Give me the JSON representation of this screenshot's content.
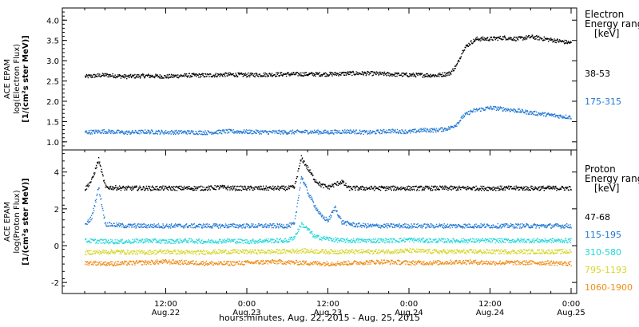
{
  "chart_data": [
    {
      "type": "scatter",
      "title": "",
      "ylabel": [
        "ACE EPAM",
        "log(Electron Flux)",
        "[1/(cm²s ster MeV)]"
      ],
      "legend_header": [
        "Electron",
        "Energy range",
        "[keV]"
      ],
      "x_range_hours": [
        0,
        72
      ],
      "ylim": [
        0.8,
        4.3
      ],
      "yticks": [
        "1.0",
        "1.5",
        "2.0",
        "2.5",
        "3.0",
        "3.5",
        "4.0"
      ],
      "ytick_values": [
        1.0,
        1.5,
        2.0,
        2.5,
        3.0,
        3.5,
        4.0
      ],
      "series": [
        {
          "name": "38-53",
          "color": "#000000",
          "points": [
            [
              0,
              2.62
            ],
            [
              3,
              2.66
            ],
            [
              6,
              2.62
            ],
            [
              9,
              2.64
            ],
            [
              12,
              2.62
            ],
            [
              15,
              2.65
            ],
            [
              18,
              2.65
            ],
            [
              21,
              2.67
            ],
            [
              24,
              2.66
            ],
            [
              27,
              2.67
            ],
            [
              30,
              2.68
            ],
            [
              33,
              2.68
            ],
            [
              36,
              2.68
            ],
            [
              39,
              2.7
            ],
            [
              42,
              2.7
            ],
            [
              45,
              2.68
            ],
            [
              48,
              2.66
            ],
            [
              50,
              2.66
            ],
            [
              52,
              2.65
            ],
            [
              54,
              2.7
            ],
            [
              55,
              2.9
            ],
            [
              56,
              3.3
            ],
            [
              57,
              3.45
            ],
            [
              58,
              3.55
            ],
            [
              60,
              3.55
            ],
            [
              62,
              3.58
            ],
            [
              64,
              3.55
            ],
            [
              66,
              3.6
            ],
            [
              68,
              3.55
            ],
            [
              70,
              3.5
            ],
            [
              72,
              3.45
            ]
          ]
        },
        {
          "name": "175-315",
          "color": "#1f77d4",
          "points": [
            [
              0,
              1.25
            ],
            [
              3,
              1.27
            ],
            [
              6,
              1.24
            ],
            [
              9,
              1.26
            ],
            [
              12,
              1.25
            ],
            [
              15,
              1.25
            ],
            [
              18,
              1.24
            ],
            [
              21,
              1.27
            ],
            [
              24,
              1.26
            ],
            [
              27,
              1.25
            ],
            [
              30,
              1.25
            ],
            [
              33,
              1.26
            ],
            [
              36,
              1.25
            ],
            [
              39,
              1.27
            ],
            [
              42,
              1.24
            ],
            [
              45,
              1.28
            ],
            [
              48,
              1.26
            ],
            [
              50,
              1.3
            ],
            [
              52,
              1.3
            ],
            [
              54,
              1.35
            ],
            [
              55,
              1.45
            ],
            [
              56,
              1.65
            ],
            [
              57,
              1.75
            ],
            [
              58,
              1.8
            ],
            [
              60,
              1.85
            ],
            [
              62,
              1.82
            ],
            [
              64,
              1.78
            ],
            [
              66,
              1.73
            ],
            [
              68,
              1.69
            ],
            [
              70,
              1.65
            ],
            [
              72,
              1.62
            ]
          ]
        }
      ]
    },
    {
      "type": "scatter",
      "title": "",
      "ylabel": [
        "ACE EPAM",
        "log(Proton Flux)",
        "[1/(cm²s ster MeV)]"
      ],
      "legend_header": [
        "Proton",
        "Energy range",
        "[keV]"
      ],
      "x_range_hours": [
        0,
        72
      ],
      "ylim": [
        -2.6,
        5.2
      ],
      "yticks": [
        "-2",
        "0",
        "2",
        "4"
      ],
      "ytick_values": [
        -2,
        0,
        2,
        4
      ],
      "series": [
        {
          "name": "47-68",
          "color": "#000000",
          "points": [
            [
              0,
              3.1
            ],
            [
              1,
              3.6
            ],
            [
              2,
              4.7
            ],
            [
              3,
              3.2
            ],
            [
              6,
              3.15
            ],
            [
              9,
              3.15
            ],
            [
              12,
              3.15
            ],
            [
              15,
              3.15
            ],
            [
              18,
              3.15
            ],
            [
              20,
              3.2
            ],
            [
              22,
              3.15
            ],
            [
              25,
              3.15
            ],
            [
              28,
              3.15
            ],
            [
              30,
              3.15
            ],
            [
              31,
              3.2
            ],
            [
              32,
              4.8
            ],
            [
              33,
              4.2
            ],
            [
              34,
              3.6
            ],
            [
              35,
              3.3
            ],
            [
              36,
              3.2
            ],
            [
              38,
              3.5
            ],
            [
              39,
              3.15
            ],
            [
              42,
              3.15
            ],
            [
              45,
              3.15
            ],
            [
              48,
              3.15
            ],
            [
              51,
              3.15
            ],
            [
              54,
              3.15
            ],
            [
              57,
              3.15
            ],
            [
              60,
              3.15
            ],
            [
              63,
              3.15
            ],
            [
              66,
              3.15
            ],
            [
              69,
              3.15
            ],
            [
              72,
              3.15
            ]
          ]
        },
        {
          "name": "115-195",
          "color": "#1f77d4",
          "points": [
            [
              0,
              1.1
            ],
            [
              1,
              1.6
            ],
            [
              2,
              3.2
            ],
            [
              3,
              1.2
            ],
            [
              6,
              1.1
            ],
            [
              9,
              1.1
            ],
            [
              12,
              1.1
            ],
            [
              15,
              1.1
            ],
            [
              18,
              1.1
            ],
            [
              21,
              1.1
            ],
            [
              24,
              1.1
            ],
            [
              27,
              1.1
            ],
            [
              30,
              1.1
            ],
            [
              31,
              1.2
            ],
            [
              32,
              3.8
            ],
            [
              33,
              2.9
            ],
            [
              34,
              2.2
            ],
            [
              35,
              1.6
            ],
            [
              36,
              1.4
            ],
            [
              37,
              2.1
            ],
            [
              38,
              1.3
            ],
            [
              40,
              1.15
            ],
            [
              42,
              1.1
            ],
            [
              45,
              1.1
            ],
            [
              48,
              1.1
            ],
            [
              51,
              1.1
            ],
            [
              54,
              1.1
            ],
            [
              57,
              1.1
            ],
            [
              60,
              1.1
            ],
            [
              63,
              1.1
            ],
            [
              66,
              1.1
            ],
            [
              69,
              1.1
            ],
            [
              72,
              1.1
            ]
          ]
        },
        {
          "name": "310-580",
          "color": "#22d8d8",
          "points": [
            [
              0,
              0.3
            ],
            [
              3,
              0.25
            ],
            [
              6,
              0.25
            ],
            [
              9,
              0.3
            ],
            [
              12,
              0.25
            ],
            [
              15,
              0.3
            ],
            [
              18,
              0.25
            ],
            [
              21,
              0.3
            ],
            [
              24,
              0.25
            ],
            [
              27,
              0.3
            ],
            [
              30,
              0.3
            ],
            [
              31,
              0.5
            ],
            [
              32,
              1.2
            ],
            [
              33,
              0.9
            ],
            [
              34,
              0.5
            ],
            [
              36,
              0.4
            ],
            [
              38,
              0.3
            ],
            [
              42,
              0.3
            ],
            [
              45,
              0.3
            ],
            [
              48,
              0.35
            ],
            [
              51,
              0.3
            ],
            [
              54,
              0.3
            ],
            [
              57,
              0.3
            ],
            [
              60,
              0.3
            ],
            [
              63,
              0.3
            ],
            [
              66,
              0.3
            ],
            [
              69,
              0.3
            ],
            [
              72,
              0.3
            ]
          ]
        },
        {
          "name": "795-1193",
          "color": "#d6d62a",
          "points": [
            [
              0,
              -0.35
            ],
            [
              4,
              -0.3
            ],
            [
              8,
              -0.35
            ],
            [
              12,
              -0.3
            ],
            [
              16,
              -0.35
            ],
            [
              20,
              -0.3
            ],
            [
              24,
              -0.3
            ],
            [
              28,
              -0.3
            ],
            [
              32,
              -0.25
            ],
            [
              36,
              -0.3
            ],
            [
              40,
              -0.3
            ],
            [
              44,
              -0.3
            ],
            [
              48,
              -0.25
            ],
            [
              52,
              -0.3
            ],
            [
              56,
              -0.3
            ],
            [
              60,
              -0.3
            ],
            [
              64,
              -0.3
            ],
            [
              68,
              -0.3
            ],
            [
              72,
              -0.3
            ]
          ]
        },
        {
          "name": "1060-1900",
          "color": "#f08c14",
          "points": [
            [
              0,
              -0.9
            ],
            [
              4,
              -0.95
            ],
            [
              8,
              -0.9
            ],
            [
              12,
              -0.85
            ],
            [
              16,
              -0.9
            ],
            [
              20,
              -0.95
            ],
            [
              24,
              -0.9
            ],
            [
              28,
              -0.85
            ],
            [
              32,
              -0.9
            ],
            [
              36,
              -0.95
            ],
            [
              40,
              -0.9
            ],
            [
              44,
              -0.85
            ],
            [
              48,
              -0.9
            ],
            [
              52,
              -0.9
            ],
            [
              56,
              -0.85
            ],
            [
              60,
              -0.9
            ],
            [
              64,
              -0.9
            ],
            [
              68,
              -0.9
            ],
            [
              72,
              -0.95
            ]
          ]
        }
      ]
    }
  ],
  "x_axis": {
    "ticks": [
      {
        "time": "12:00",
        "date": "Aug.22",
        "hours": 12
      },
      {
        "time": "0:00",
        "date": "Aug.23",
        "hours": 24
      },
      {
        "time": "12:00",
        "date": "Aug.23",
        "hours": 36
      },
      {
        "time": "0:00",
        "date": "Aug.24",
        "hours": 48
      },
      {
        "time": "12:00",
        "date": "Aug.24",
        "hours": 60
      },
      {
        "time": "0:00",
        "date": "Aug.25",
        "hours": 72
      }
    ],
    "label": "hours:minutes, Aug. 22, 2015 - Aug. 25, 2015"
  }
}
